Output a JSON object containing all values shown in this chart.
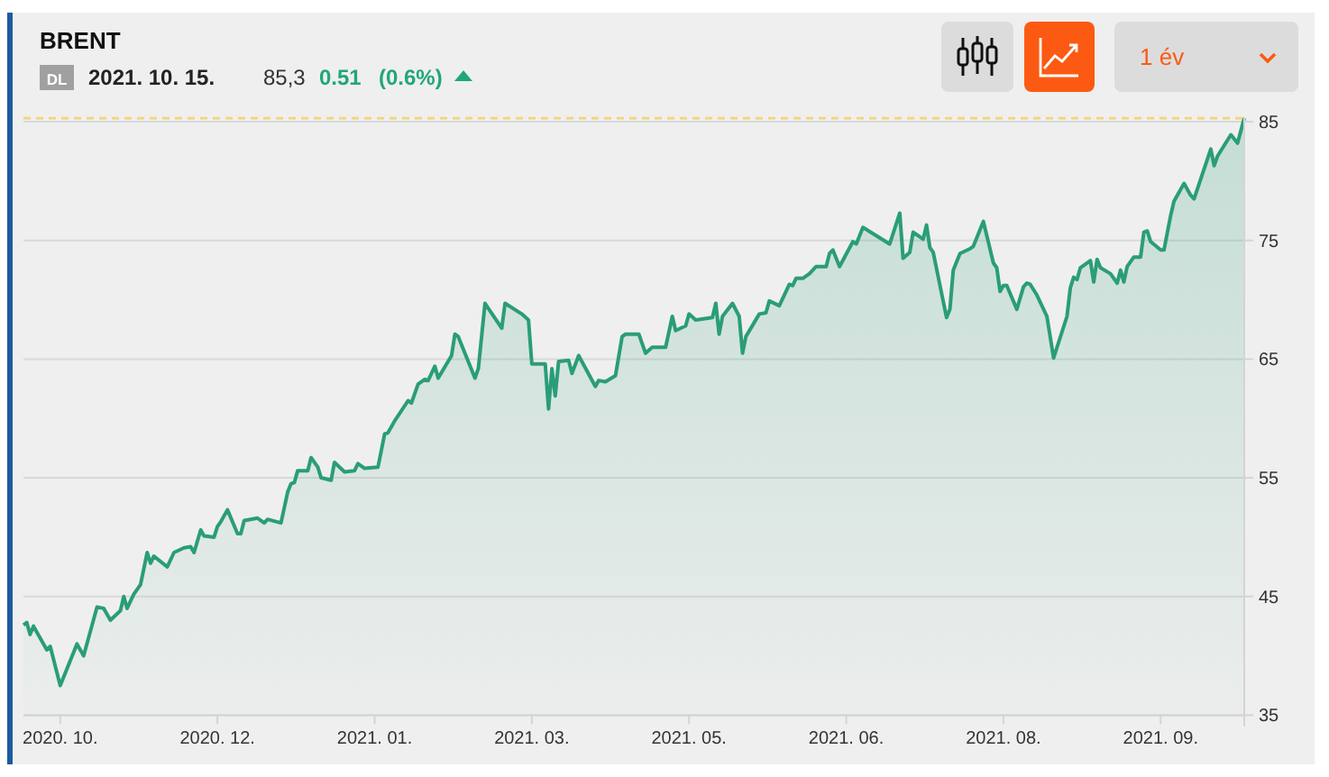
{
  "chart_data": {
    "type": "area",
    "title": "BRENT",
    "annotations": [
      "DL",
      "2021. 10. 15.",
      "85,3",
      "0.51",
      "(0.6%)",
      "1 év"
    ],
    "x": [
      "2020-10-15",
      "2020-10-16",
      "2020-10-17",
      "2020-10-18",
      "2020-10-22",
      "2020-10-23",
      "2020-10-26",
      "2020-10-31",
      "2020-11-02",
      "2020-11-06",
      "2020-11-08",
      "2020-11-10",
      "2020-11-13",
      "2020-11-14",
      "2020-11-15",
      "2020-11-17",
      "2020-11-19",
      "2020-11-21",
      "2020-11-22",
      "2020-11-23",
      "2020-11-27",
      "2020-11-29",
      "2020-12-02",
      "2020-12-04",
      "2020-12-05",
      "2020-12-07",
      "2020-12-08",
      "2020-12-11",
      "2020-12-12",
      "2020-12-13",
      "2020-12-15",
      "2020-12-18",
      "2020-12-19",
      "2020-12-20",
      "2020-12-24",
      "2020-12-26",
      "2020-12-27",
      "2020-12-31",
      "2021-01-02",
      "2021-01-03",
      "2021-01-04",
      "2021-01-05",
      "2021-01-08",
      "2021-01-09",
      "2021-01-11",
      "2021-01-12",
      "2021-01-15",
      "2021-01-16",
      "2021-01-19",
      "2021-01-22",
      "2021-01-23",
      "2021-01-25",
      "2021-01-29",
      "2021-01-31",
      "2021-02-01",
      "2021-02-03",
      "2021-02-07",
      "2021-02-08",
      "2021-02-10",
      "2021-02-12",
      "2021-02-13",
      "2021-02-15",
      "2021-02-16",
      "2021-02-20",
      "2021-02-21",
      "2021-02-22",
      "2021-02-27",
      "2021-02-28",
      "2021-03-02",
      "2021-03-07",
      "2021-03-08",
      "2021-03-13",
      "2021-03-15",
      "2021-03-16",
      "2021-03-20",
      "2021-03-21",
      "2021-03-22",
      "2021-03-23",
      "2021-03-24",
      "2021-03-27",
      "2021-03-28",
      "2021-03-30",
      "2021-04-04",
      "2021-04-05",
      "2021-04-07",
      "2021-04-10",
      "2021-04-12",
      "2021-04-13",
      "2021-04-17",
      "2021-04-19",
      "2021-04-21",
      "2021-04-25",
      "2021-04-27",
      "2021-04-28",
      "2021-05-01",
      "2021-05-02",
      "2021-05-04",
      "2021-05-09",
      "2021-05-10",
      "2021-05-11",
      "2021-05-12",
      "2021-05-15",
      "2021-05-17",
      "2021-05-18",
      "2021-05-19",
      "2021-05-23",
      "2021-05-25",
      "2021-05-26",
      "2021-05-29",
      "2021-06-01",
      "2021-06-02",
      "2021-06-03",
      "2021-06-05",
      "2021-06-07",
      "2021-06-09",
      "2021-06-12",
      "2021-06-13",
      "2021-06-14",
      "2021-06-16",
      "2021-06-20",
      "2021-06-21",
      "2021-06-23",
      "2021-06-27",
      "2021-07-01",
      "2021-07-04",
      "2021-07-05",
      "2021-07-07",
      "2021-07-08",
      "2021-07-11",
      "2021-07-12",
      "2021-07-13",
      "2021-07-14",
      "2021-07-18",
      "2021-07-19",
      "2021-07-20",
      "2021-07-22",
      "2021-07-25",
      "2021-07-26",
      "2021-07-29",
      "2021-08-01",
      "2021-08-02",
      "2021-08-03",
      "2021-08-04",
      "2021-08-05",
      "2021-08-08",
      "2021-08-10",
      "2021-08-11",
      "2021-08-12",
      "2021-08-14",
      "2021-08-17",
      "2021-08-19",
      "2021-08-23",
      "2021-08-24",
      "2021-08-25",
      "2021-08-26",
      "2021-08-27",
      "2021-08-30",
      "2021-08-31",
      "2021-09-01",
      "2021-09-02",
      "2021-09-05",
      "2021-09-07",
      "2021-09-08",
      "2021-09-09",
      "2021-09-10",
      "2021-09-12",
      "2021-09-14",
      "2021-09-15",
      "2021-09-16",
      "2021-09-17",
      "2021-09-20",
      "2021-09-21",
      "2021-09-23",
      "2021-09-24",
      "2021-09-27",
      "2021-09-29",
      "2021-09-30",
      "2021-10-05",
      "2021-10-06",
      "2021-10-07",
      "2021-10-11",
      "2021-10-13",
      "2021-10-15"
    ],
    "series": [
      {
        "color": "#2a9d78",
        "values": [
          42.6,
          42.8,
          41.8,
          42.5,
          40.5,
          40.8,
          37.5,
          41.0,
          40.0,
          44.1,
          44.0,
          43.0,
          43.8,
          45.0,
          44.0,
          45.2,
          46.0,
          48.7,
          47.8,
          48.4,
          47.5,
          48.7,
          49.1,
          49.2,
          48.7,
          50.6,
          50.1,
          50.0,
          50.9,
          51.3,
          52.3,
          50.3,
          50.3,
          51.4,
          51.6,
          51.2,
          51.5,
          51.2,
          53.8,
          54.5,
          54.6,
          55.6,
          55.6,
          56.7,
          55.9,
          55.0,
          54.8,
          56.3,
          55.5,
          55.6,
          56.2,
          55.8,
          55.9,
          58.7,
          58.8,
          59.8,
          61.5,
          61.3,
          62.9,
          63.3,
          63.2,
          64.4,
          63.4,
          65.3,
          67.1,
          66.9,
          63.4,
          64.2,
          69.7,
          67.6,
          69.7,
          68.8,
          68.3,
          64.6,
          64.6,
          60.8,
          64.2,
          61.9,
          64.8,
          64.9,
          63.8,
          65.3,
          62.7,
          63.2,
          63.1,
          63.6,
          66.9,
          67.1,
          67.1,
          65.5,
          66.0,
          66.0,
          68.6,
          67.4,
          67.8,
          68.8,
          68.3,
          68.5,
          69.7,
          67.1,
          68.6,
          69.7,
          68.6,
          65.5,
          66.9,
          68.8,
          68.9,
          69.9,
          69.5,
          71.3,
          71.2,
          71.8,
          71.8,
          72.2,
          72.8,
          72.8,
          73.9,
          74.2,
          72.8,
          74.9,
          74.7,
          76.1,
          75.4,
          74.7,
          77.3,
          73.5,
          74.0,
          75.7,
          75.1,
          76.3,
          74.4,
          74.0,
          68.5,
          69.2,
          72.5,
          73.9,
          74.3,
          74.5,
          76.6,
          73.1,
          72.7,
          70.7,
          71.2,
          71.2,
          69.2,
          71.1,
          71.4,
          71.3,
          70.4,
          68.6,
          65.1,
          68.6,
          71.0,
          71.9,
          71.7,
          72.7,
          73.3,
          71.5,
          73.4,
          72.7,
          72.2,
          71.4,
          72.5,
          71.5,
          72.8,
          73.6,
          73.6,
          75.7,
          75.8,
          74.9,
          74.2,
          74.2,
          77.1,
          78.3,
          79.8,
          78.8,
          78.5,
          82.7,
          81.3,
          82.1,
          83.9,
          83.2,
          85.3
        ]
      }
    ],
    "xlim": [
      "2020-10-15",
      "2021-10-15"
    ],
    "xticks": [
      {
        "value": "2020-10-26",
        "label": "2020. 10."
      },
      {
        "value": "2020-12-12",
        "label": "2020. 12."
      },
      {
        "value": "2021-01-28",
        "label": "2021. 01."
      },
      {
        "value": "2021-03-16",
        "label": "2021. 03."
      },
      {
        "value": "2021-05-02",
        "label": "2021. 05."
      },
      {
        "value": "2021-06-18",
        "label": "2021. 06."
      },
      {
        "value": "2021-08-04",
        "label": "2021. 08."
      },
      {
        "value": "2021-09-20",
        "label": "2021. 09."
      }
    ],
    "ylim": [
      35,
      85.4
    ],
    "yticks": [
      35,
      45,
      55,
      65,
      75,
      85
    ],
    "ref_lines": [
      {
        "axis": "y",
        "value": 85.3,
        "color": "#f2d675",
        "line_style": "dashed"
      }
    ],
    "grid": "y",
    "marker": "none",
    "line_style": "solid"
  }
}
